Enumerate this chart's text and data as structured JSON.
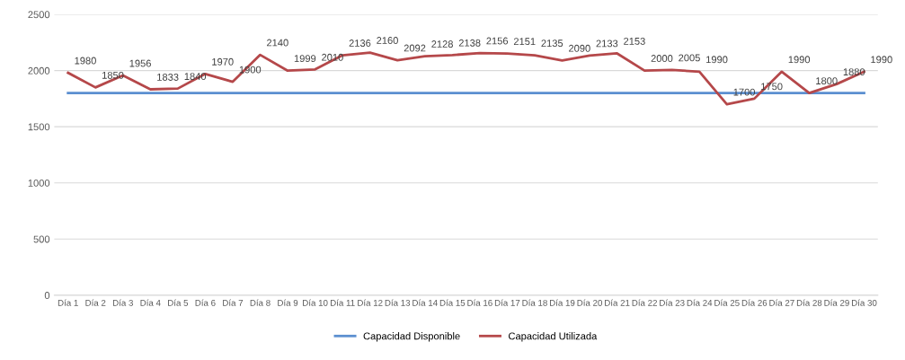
{
  "chart_data": {
    "type": "line",
    "categories": [
      "Día 1",
      "Día 2",
      "Día 3",
      "Día 4",
      "Día 5",
      "Día 6",
      "Día 7",
      "Día 8",
      "Día 9",
      "Día 10",
      "Día 11",
      "Día 12",
      "Día 13",
      "Día 14",
      "Día 15",
      "Día 16",
      "Día 17",
      "Día 18",
      "Día 19",
      "Día 20",
      "Día 21",
      "Día 22",
      "Día 23",
      "Día 24",
      "Día 25",
      "Día 26",
      "Día 27",
      "Día 28",
      "Día 29",
      "Día 30"
    ],
    "series": [
      {
        "name": "Capacidad Disponible",
        "color": "#5b8fd0",
        "values": [
          1800,
          1800,
          1800,
          1800,
          1800,
          1800,
          1800,
          1800,
          1800,
          1800,
          1800,
          1800,
          1800,
          1800,
          1800,
          1800,
          1800,
          1800,
          1800,
          1800,
          1800,
          1800,
          1800,
          1800,
          1800,
          1800,
          1800,
          1800,
          1800,
          1800
        ]
      },
      {
        "name": "Capacidad Utilizada",
        "color": "#b5484a",
        "values": [
          1980,
          1850,
          1956,
          1833,
          1840,
          1970,
          1900,
          2140,
          1999,
          2010,
          2136,
          2160,
          2092,
          2128,
          2138,
          2156,
          2151,
          2135,
          2090,
          2133,
          2153,
          2000,
          2005,
          1990,
          1700,
          1750,
          1990,
          1800,
          1880,
          1990
        ],
        "value_labels": [
          "1980",
          "1850",
          "1956",
          "1833",
          "1840",
          "1970",
          "1900",
          "2140",
          "1999",
          "2010",
          "2136",
          "2160",
          "2092",
          "2128",
          "2138",
          "2156",
          "2151",
          "2135",
          "2090",
          "2133",
          "2153",
          "2000",
          "2005",
          "1990",
          "1700",
          "1750",
          "1990",
          "1800",
          "1880",
          "1990"
        ]
      }
    ],
    "ylim": [
      0,
      2500
    ],
    "yticks": [
      0,
      500,
      1000,
      1500,
      2000,
      2500
    ],
    "grid": "y",
    "legend": "bottom",
    "marker": "none",
    "line_style": "solid"
  }
}
